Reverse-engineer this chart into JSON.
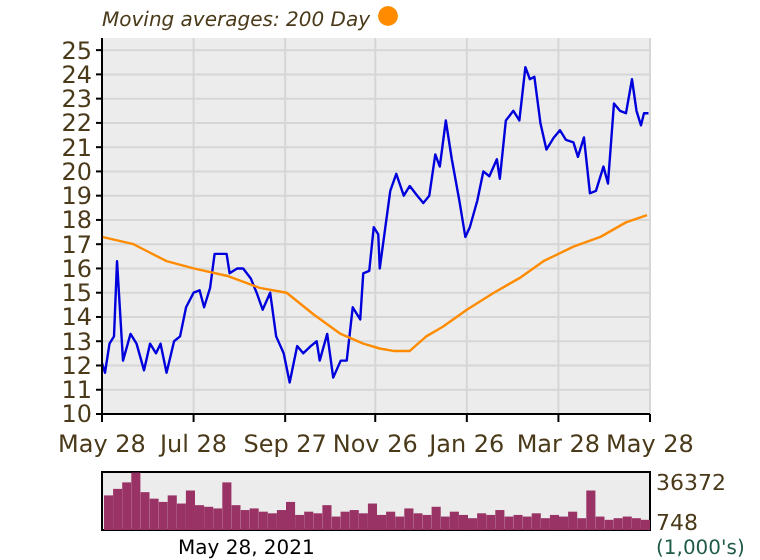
{
  "chart_data": [
    {
      "type": "line",
      "xlim": [
        "2020-05-28",
        "2021-05-28"
      ],
      "xticks": [
        {
          "value": "2020-05-28",
          "label": "May 28"
        },
        {
          "value": "2020-07-28",
          "label": "Jul 28"
        },
        {
          "value": "2020-09-27",
          "label": "Sep 27"
        },
        {
          "value": "2020-11-26",
          "label": "Nov 26"
        },
        {
          "value": "2021-01-26",
          "label": "Jan 26"
        },
        {
          "value": "2021-03-28",
          "label": "Mar 28"
        },
        {
          "value": "2021-05-28",
          "label": "May 28"
        }
      ],
      "ylim": [
        10,
        25.5
      ],
      "yticks": [
        10,
        11,
        12,
        13,
        14,
        15,
        16,
        17,
        18,
        19,
        20,
        21,
        22,
        23,
        24,
        25
      ],
      "grid": true,
      "legend": "top left",
      "legend_title": "Moving averages:",
      "series": [
        {
          "color": "#0000dd",
          "x": [
            "2020-05-28",
            "2020-05-30",
            "2020-06-02",
            "2020-06-05",
            "2020-06-07",
            "2020-06-11",
            "2020-06-16",
            "2020-06-20",
            "2020-06-25",
            "2020-06-29",
            "2020-07-03",
            "2020-07-06",
            "2020-07-10",
            "2020-07-15",
            "2020-07-19",
            "2020-07-23",
            "2020-07-28",
            "2020-08-01",
            "2020-08-04",
            "2020-08-08",
            "2020-08-11",
            "2020-08-19",
            "2020-08-21",
            "2020-08-26",
            "2020-08-30",
            "2020-09-04",
            "2020-09-08",
            "2020-09-12",
            "2020-09-17",
            "2020-09-21",
            "2020-09-26",
            "2020-09-30",
            "2020-10-05",
            "2020-10-09",
            "2020-10-14",
            "2020-10-18",
            "2020-10-20",
            "2020-10-25",
            "2020-10-29",
            "2020-11-03",
            "2020-11-07",
            "2020-11-11",
            "2020-11-16",
            "2020-11-18",
            "2020-11-22",
            "2020-11-25",
            "2020-11-28",
            "2020-11-29",
            "2020-12-06",
            "2020-12-10",
            "2020-12-15",
            "2020-12-19",
            "2020-12-24",
            "2020-12-28",
            "2021-01-01",
            "2021-01-05",
            "2021-01-08",
            "2021-01-12",
            "2021-01-16",
            "2021-01-21",
            "2021-01-25",
            "2021-01-28",
            "2021-02-02",
            "2021-02-06",
            "2021-02-10",
            "2021-02-15",
            "2021-02-17",
            "2021-02-21",
            "2021-02-26",
            "2021-03-02",
            "2021-03-06",
            "2021-03-09",
            "2021-03-12",
            "2021-03-16",
            "2021-03-20",
            "2021-03-25",
            "2021-03-29",
            "2021-04-02",
            "2021-04-07",
            "2021-04-10",
            "2021-04-14",
            "2021-04-18",
            "2021-04-22",
            "2021-04-27",
            "2021-04-30",
            "2021-05-04",
            "2021-05-08",
            "2021-05-12",
            "2021-05-16",
            "2021-05-19",
            "2021-05-22",
            "2021-05-24",
            "2021-05-27"
          ],
          "values": [
            12.1,
            11.7,
            12.9,
            13.2,
            16.3,
            12.2,
            13.3,
            12.9,
            11.8,
            12.9,
            12.5,
            12.9,
            11.7,
            13,
            13.2,
            14.4,
            15,
            15.1,
            14.4,
            15.2,
            16.6,
            16.6,
            15.8,
            16,
            16,
            15.6,
            15,
            14.3,
            15,
            13.2,
            12.5,
            11.3,
            12.8,
            12.5,
            12.8,
            13,
            12.2,
            13.3,
            11.5,
            12.2,
            12.2,
            14.4,
            13.9,
            15.8,
            15.9,
            17.7,
            17.4,
            16,
            19.2,
            19.9,
            19,
            19.4,
            19,
            18.7,
            19,
            20.7,
            20.2,
            22.1,
            20.5,
            18.8,
            17.3,
            17.7,
            18.8,
            20,
            19.8,
            20.5,
            19.7,
            22.1,
            22.5,
            22.1,
            24.3,
            23.8,
            23.9,
            22,
            20.9,
            21.4,
            21.7,
            21.3,
            21.2,
            20.6,
            21.4,
            19.1,
            19.2,
            20.2,
            19.5,
            22.8,
            22.5,
            22.4,
            23.8,
            22.5,
            21.9,
            22.4,
            22.4
          ]
        },
        {
          "name": "200 Day",
          "color": "#ff8c00",
          "x": [
            "2020-05-28",
            "2020-06-18",
            "2020-07-10",
            "2020-07-28",
            "2020-08-19",
            "2020-09-10",
            "2020-09-28",
            "2020-10-16",
            "2020-11-03",
            "2020-11-18",
            "2020-11-29",
            "2020-12-08",
            "2020-12-19",
            "2020-12-30",
            "2021-01-10",
            "2021-01-26",
            "2021-02-13",
            "2021-03-02",
            "2021-03-18",
            "2021-04-07",
            "2021-04-25",
            "2021-05-12",
            "2021-05-26"
          ],
          "values": [
            17.3,
            17,
            16.3,
            16,
            15.7,
            15.2,
            15,
            14.1,
            13.3,
            12.9,
            12.7,
            12.6,
            12.6,
            13.2,
            13.6,
            14.3,
            15,
            15.6,
            16.3,
            16.9,
            17.3,
            17.9,
            18.2
          ]
        }
      ]
    },
    {
      "type": "bar",
      "tick_labels": "y",
      "ylabel": "(1,000's)",
      "ylim": [
        748,
        36372
      ],
      "yticks": [
        748,
        36372
      ],
      "annotations": [
        "May 28, 2021"
      ],
      "categories": [
        null,
        null,
        null,
        null,
        null,
        null,
        null,
        null,
        null,
        null,
        null,
        null,
        null,
        null,
        null,
        null,
        null,
        null,
        null,
        null,
        null,
        null,
        null,
        null,
        null,
        null,
        null,
        null,
        null,
        null,
        null,
        null,
        null,
        null,
        null,
        null,
        null,
        null,
        null,
        null,
        null,
        null,
        null,
        null,
        null,
        null,
        null,
        null,
        null,
        null,
        null,
        null,
        null,
        null,
        null,
        null,
        null,
        null,
        null,
        null
      ],
      "series": [
        {
          "color": "#993366",
          "values": [
            22000,
            26000,
            30000,
            36000,
            24000,
            20000,
            18000,
            22000,
            17000,
            25000,
            16000,
            15000,
            14000,
            30000,
            16000,
            13000,
            14000,
            12000,
            11000,
            13000,
            18000,
            10000,
            12000,
            11000,
            16000,
            9000,
            12000,
            13000,
            11000,
            17000,
            10000,
            12000,
            9000,
            14000,
            11000,
            10000,
            15000,
            9000,
            12000,
            10000,
            8000,
            11000,
            10000,
            13000,
            9000,
            10000,
            9000,
            11000,
            8000,
            10000,
            9000,
            12000,
            8000,
            25000,
            9000,
            7000,
            8000,
            9000,
            8000,
            7000
          ]
        }
      ]
    }
  ]
}
